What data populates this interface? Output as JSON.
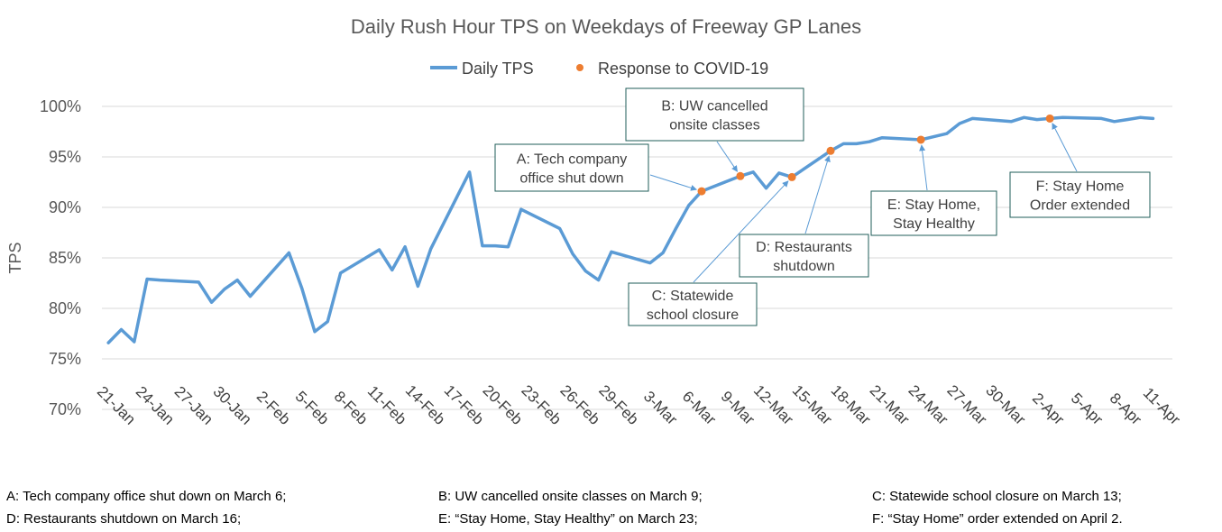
{
  "chart_data": {
    "type": "line",
    "title": "Daily Rush Hour TPS on Weekdays of Freeway GP Lanes",
    "ylabel": "TPS",
    "xlabel": "",
    "ylim": [
      70,
      100
    ],
    "yticks": [
      70,
      75,
      80,
      85,
      90,
      95,
      100
    ],
    "ytick_labels": [
      "70%",
      "75%",
      "80%",
      "85%",
      "90%",
      "95%",
      "100%"
    ],
    "grid": true,
    "legend_position": "top-center",
    "x_dates": [
      "20-Jan",
      "21-Jan",
      "22-Jan",
      "23-Jan",
      "24-Jan",
      "27-Jan",
      "28-Jan",
      "29-Jan",
      "30-Jan",
      "31-Jan",
      "3-Feb",
      "4-Feb",
      "5-Feb",
      "6-Feb",
      "7-Feb",
      "10-Feb",
      "11-Feb",
      "12-Feb",
      "13-Feb",
      "14-Feb",
      "17-Feb",
      "18-Feb",
      "19-Feb",
      "20-Feb",
      "21-Feb",
      "24-Feb",
      "25-Feb",
      "26-Feb",
      "27-Feb",
      "28-Feb",
      "2-Mar",
      "3-Mar",
      "4-Mar",
      "5-Mar",
      "6-Mar",
      "9-Mar",
      "10-Mar",
      "11-Mar",
      "12-Mar",
      "13-Mar",
      "16-Mar",
      "17-Mar",
      "18-Mar",
      "19-Mar",
      "20-Mar",
      "23-Mar",
      "24-Mar",
      "25-Mar",
      "26-Mar",
      "27-Mar",
      "30-Mar",
      "31-Mar",
      "1-Apr",
      "2-Apr",
      "3-Apr",
      "6-Apr",
      "7-Apr",
      "8-Apr",
      "9-Apr",
      "10-Apr"
    ],
    "x_index": [
      0,
      1,
      2,
      3,
      4,
      7,
      8,
      9,
      10,
      11,
      14,
      15,
      16,
      17,
      18,
      21,
      22,
      23,
      24,
      25,
      28,
      29,
      30,
      31,
      32,
      35,
      36,
      37,
      38,
      39,
      42,
      43,
      44,
      45,
      46,
      49,
      50,
      51,
      52,
      53,
      56,
      57,
      58,
      59,
      60,
      63,
      64,
      65,
      66,
      67,
      70,
      71,
      72,
      73,
      74,
      77,
      78,
      79,
      80,
      81
    ],
    "x_tick_index": [
      1,
      4,
      7,
      10,
      13,
      16,
      19,
      22,
      25,
      28,
      31,
      34,
      37,
      40,
      43,
      46,
      49,
      52,
      55,
      58,
      61,
      64,
      67,
      70,
      73,
      76,
      79,
      82
    ],
    "x_tick_labels": [
      "21-Jan",
      "24-Jan",
      "27-Jan",
      "30-Jan",
      "2-Feb",
      "5-Feb",
      "8-Feb",
      "11-Feb",
      "14-Feb",
      "17-Feb",
      "20-Feb",
      "23-Feb",
      "26-Feb",
      "29-Feb",
      "3-Mar",
      "6-Mar",
      "9-Mar",
      "12-Mar",
      "15-Mar",
      "18-Mar",
      "21-Mar",
      "24-Mar",
      "27-Mar",
      "30-Mar",
      "2-Apr",
      "5-Apr",
      "8-Apr",
      "11-Apr"
    ],
    "x_range_index": [
      -0.5,
      82.5
    ],
    "series": [
      {
        "name": "Daily TPS",
        "color": "#5b9bd5",
        "values": [
          76.6,
          77.9,
          76.7,
          82.9,
          82.8,
          82.6,
          80.6,
          81.9,
          82.8,
          81.2,
          85.5,
          82.0,
          77.7,
          78.7,
          83.5,
          85.8,
          83.8,
          86.1,
          82.2,
          85.9,
          93.5,
          86.2,
          86.2,
          86.1,
          89.8,
          87.9,
          85.4,
          83.7,
          82.8,
          85.6,
          84.5,
          85.5,
          87.9,
          90.2,
          91.6,
          93.1,
          93.5,
          91.9,
          93.4,
          93.0,
          95.6,
          96.3,
          96.3,
          96.5,
          96.9,
          96.7,
          97.0,
          97.3,
          98.3,
          98.8,
          98.5,
          98.9,
          98.7,
          98.8,
          98.9,
          98.8,
          98.5,
          98.7,
          98.9,
          98.8
        ]
      },
      {
        "name": "Response to COVID-19",
        "color": "#ed7d31",
        "points": [
          {
            "label": "A",
            "date": "6-Mar",
            "x_index": 46,
            "value": 91.6
          },
          {
            "label": "B",
            "date": "9-Mar",
            "x_index": 49,
            "value": 93.1
          },
          {
            "label": "C",
            "date": "13-Mar",
            "x_index": 53,
            "value": 93.0
          },
          {
            "label": "D",
            "date": "16-Mar",
            "x_index": 56,
            "value": 95.6
          },
          {
            "label": "E",
            "date": "23-Mar",
            "x_index": 63,
            "value": 96.7
          },
          {
            "label": "F",
            "date": "2-Apr",
            "x_index": 73,
            "value": 98.8
          }
        ]
      }
    ],
    "annotations": [
      {
        "id": "A",
        "lines": [
          "A: Tech company",
          "office shut down"
        ]
      },
      {
        "id": "B",
        "lines": [
          "B: UW cancelled",
          "onsite classes"
        ]
      },
      {
        "id": "C",
        "lines": [
          "C: Statewide",
          "school closure"
        ]
      },
      {
        "id": "D",
        "lines": [
          "D: Restaurants",
          "shutdown"
        ]
      },
      {
        "id": "E",
        "lines": [
          "E: Stay Home,",
          "Stay Healthy"
        ]
      },
      {
        "id": "F",
        "lines": [
          "F: Stay Home",
          "Order extended"
        ]
      }
    ]
  },
  "footnotes": {
    "a": "A: Tech company office shut down on March 6;",
    "b": "B: UW cancelled onsite classes on March 9;",
    "c": "C: Statewide school closure on March 13;",
    "d": "D: Restaurants shutdown on March 16;",
    "e": "E: “Stay Home, Stay Healthy” on March 23;",
    "f": "F: “Stay Home” order extended on April 2."
  }
}
